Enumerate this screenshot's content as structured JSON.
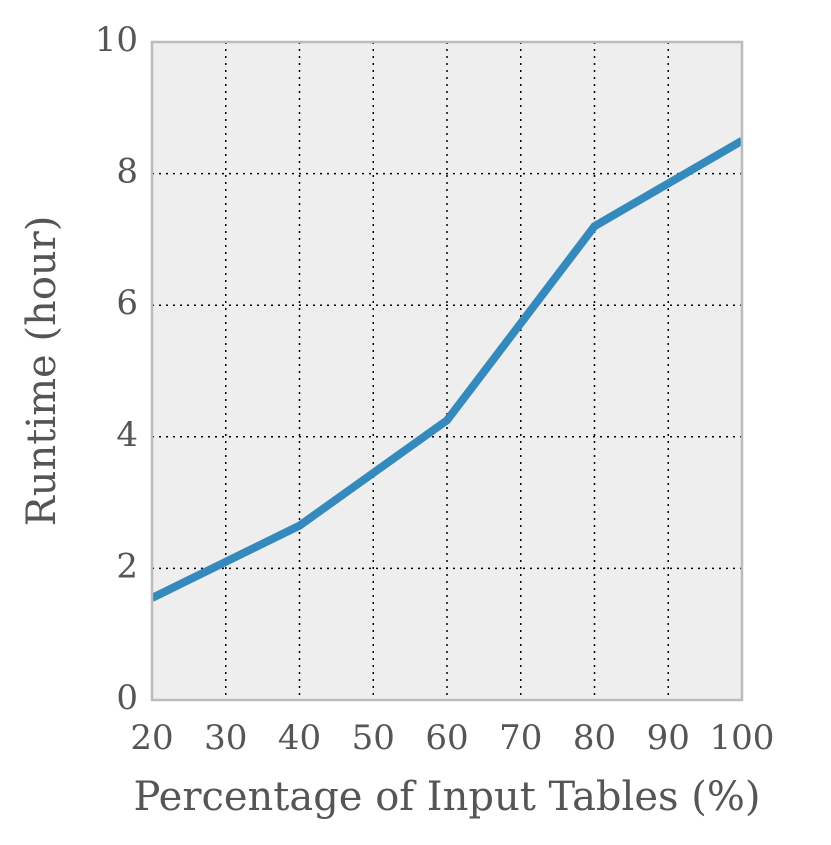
{
  "chart_data": {
    "type": "line",
    "x": [
      20,
      40,
      60,
      80,
      100
    ],
    "series": [
      {
        "name": "Runtime",
        "color": "#348abd",
        "values": [
          1.55,
          2.65,
          4.25,
          7.2,
          8.5
        ]
      }
    ],
    "xlabel": "Percentage of Input Tables (%)",
    "ylabel": "Runtime (hour)",
    "xlim": [
      20,
      100
    ],
    "xticks": [
      20,
      30,
      40,
      50,
      60,
      70,
      80,
      90,
      100
    ],
    "ylim": [
      0,
      10
    ],
    "yticks": [
      0,
      2,
      4,
      6,
      8,
      10
    ],
    "grid": true
  }
}
